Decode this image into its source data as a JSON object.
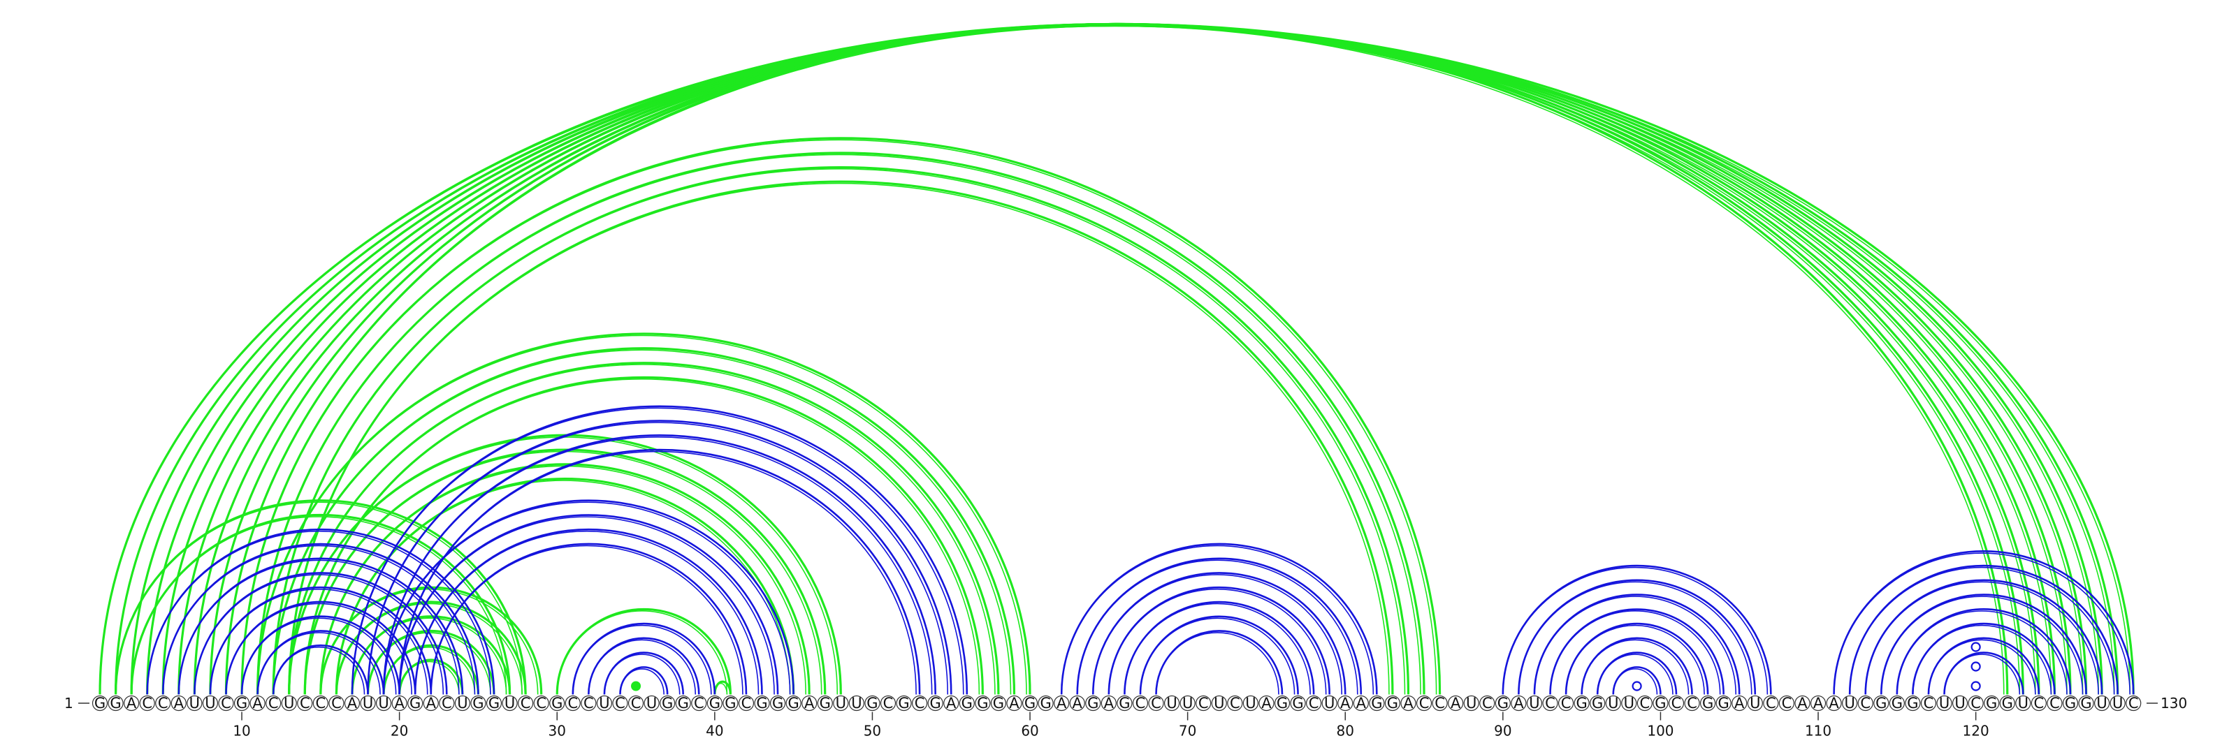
{
  "sequence": "GGACCAUUCGACUCCCAUUAGACUGGUCCGCCUCCUGGCGGCGGGAGUUGCGCGAGGGAGGAAGAGCCUUCUCUAGGCUAAGGACCAUCGAUCCGGUUCGCCGGAUCCAAAUCGGGCUUCGGUCCGGUUC",
  "start_label": "1",
  "end_label": "130",
  "ticks": [
    "10",
    "20",
    "30",
    "40",
    "50",
    "60",
    "70",
    "80",
    "90",
    "100",
    "110",
    "120"
  ],
  "colors": {
    "green": "#1ee81e",
    "blue": "#1414dc"
  },
  "arcs": [
    {
      "color": "green",
      "pairs": [
        [
          1,
          130
        ],
        [
          2,
          129
        ],
        [
          3,
          128
        ],
        [
          4,
          127
        ],
        [
          5,
          126
        ],
        [
          6,
          125
        ],
        [
          7,
          124
        ],
        [
          8,
          123
        ],
        [
          9,
          122
        ]
      ]
    },
    {
      "color": "green",
      "pairs": [
        [
          10,
          86
        ],
        [
          11,
          85
        ],
        [
          12,
          84
        ],
        [
          13,
          83
        ]
      ]
    },
    {
      "color": "green",
      "pairs": [
        [
          11,
          60
        ],
        [
          12,
          59
        ],
        [
          13,
          58
        ],
        [
          14,
          57
        ]
      ]
    },
    {
      "color": "green",
      "pairs": [
        [
          13,
          48
        ],
        [
          14,
          47
        ],
        [
          15,
          46
        ],
        [
          16,
          45
        ]
      ]
    },
    {
      "color": "green",
      "pairs": [
        [
          15,
          29
        ],
        [
          16,
          28
        ],
        [
          17,
          27
        ],
        [
          18,
          26
        ],
        [
          19,
          25
        ],
        [
          20,
          24
        ]
      ]
    },
    {
      "color": "green",
      "pairs": [
        [
          2,
          28
        ],
        [
          3,
          27
        ]
      ]
    },
    {
      "color": "blue",
      "pairs": [
        [
          4,
          26
        ],
        [
          5,
          25
        ],
        [
          6,
          24
        ],
        [
          7,
          23
        ],
        [
          8,
          22
        ],
        [
          9,
          21
        ],
        [
          10,
          20
        ],
        [
          11,
          19
        ],
        [
          12,
          18
        ]
      ]
    },
    {
      "color": "blue",
      "pairs": [
        [
          17,
          56
        ],
        [
          18,
          55
        ],
        [
          19,
          54
        ],
        [
          20,
          53
        ]
      ]
    },
    {
      "color": "blue",
      "pairs": [
        [
          19,
          45
        ],
        [
          20,
          44
        ],
        [
          21,
          43
        ],
        [
          22,
          42
        ]
      ]
    },
    {
      "color": "green",
      "pairs": [
        [
          30,
          41
        ],
        [
          40,
          41
        ]
      ]
    },
    {
      "color": "blue",
      "pairs": [
        [
          31,
          40
        ],
        [
          32,
          39
        ],
        [
          33,
          38
        ],
        [
          34,
          37
        ]
      ]
    },
    {
      "color": "blue",
      "pairs": [
        [
          62,
          82
        ],
        [
          63,
          81
        ],
        [
          64,
          80
        ],
        [
          65,
          79
        ],
        [
          66,
          78
        ],
        [
          67,
          77
        ],
        [
          68,
          76
        ]
      ]
    },
    {
      "color": "blue",
      "pairs": [
        [
          90,
          107
        ],
        [
          91,
          106
        ],
        [
          92,
          105
        ],
        [
          93,
          104
        ],
        [
          94,
          103
        ],
        [
          95,
          102
        ],
        [
          96,
          101
        ],
        [
          97,
          100
        ]
      ]
    },
    {
      "color": "blue",
      "pairs": [
        [
          111,
          130
        ],
        [
          112,
          129
        ],
        [
          113,
          128
        ],
        [
          114,
          127
        ],
        [
          115,
          126
        ],
        [
          116,
          125
        ],
        [
          117,
          124
        ],
        [
          118,
          123
        ]
      ]
    }
  ],
  "open_marks": [
    {
      "pos": 98.5,
      "level": 1,
      "color": "blue"
    },
    {
      "pos": 120.0,
      "level": 3,
      "color": "blue"
    },
    {
      "pos": 120.0,
      "level": 5,
      "color": "blue"
    },
    {
      "pos": 120.0,
      "level": 1,
      "color": "blue"
    }
  ],
  "filled_marks": [
    {
      "pos": 35.0,
      "level": 1,
      "color": "green"
    }
  ]
}
